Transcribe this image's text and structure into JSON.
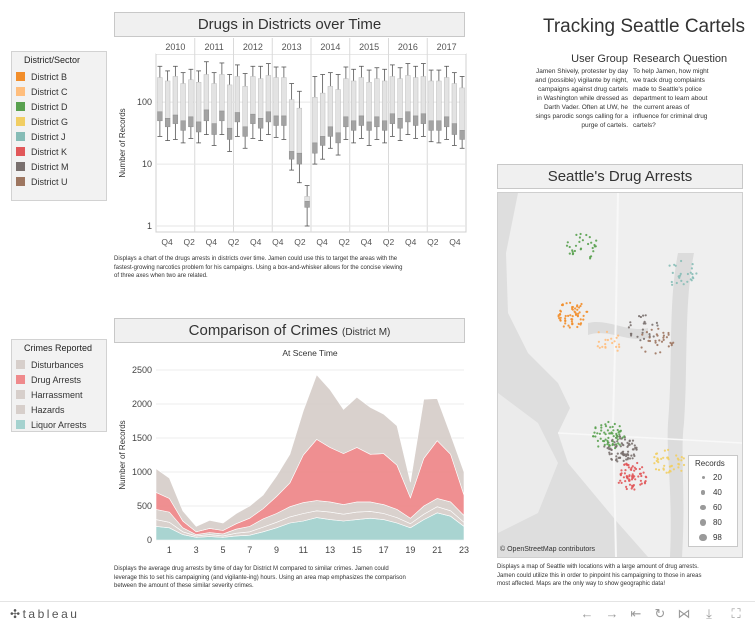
{
  "dashboard": {
    "title": "Tracking Seattle Cartels",
    "user_group": {
      "heading": "User Group",
      "lines": [
        "Jamen Shively, protester by day",
        "and (possible) vigilante by night,",
        "campaigns against drug cartels",
        "in Washington while dressed as",
        "Darth Vader. Often at UW, he",
        "sings parodic songs calling for a",
        "purge of  cartels."
      ]
    },
    "research_question": {
      "heading": "Research Question",
      "lines": [
        "To help Jamen, how might",
        "we track drug complaints",
        "made to Seattle's police",
        "department to learn about",
        "the current areas of",
        "influence for criminal drug",
        "cartels?"
      ]
    }
  },
  "legend_district": {
    "title": "District/Sector",
    "items": [
      {
        "label": "District B",
        "color": "#f28e2b"
      },
      {
        "label": "District C",
        "color": "#ffbe7d"
      },
      {
        "label": "District D",
        "color": "#59a14f"
      },
      {
        "label": "District G",
        "color": "#f1ce63"
      },
      {
        "label": "District J",
        "color": "#86bcb6"
      },
      {
        "label": "District K",
        "color": "#e15759"
      },
      {
        "label": "District M",
        "color": "#79706e"
      },
      {
        "label": "District U",
        "color": "#9d7660"
      }
    ]
  },
  "legend_crimes": {
    "title": "Crimes Reported",
    "items": [
      {
        "label": "Disturbances",
        "color": "#d7cfcb"
      },
      {
        "label": "Drug Arrests",
        "color": "#ef8a8c"
      },
      {
        "label": "Harrassment",
        "color": "#d7cfcb"
      },
      {
        "label": "Hazards",
        "color": "#d7cfcb"
      },
      {
        "label": "Liquor Arrests",
        "color": "#a5d2cf"
      }
    ]
  },
  "drugs_chart": {
    "panel_title": "Drugs in Districts over Time",
    "description": [
      "Displays a chart of the drugs arrests in districts over time. Jamen could use this to target the areas with the",
      "fastest-growing narcotics problem for his campaigns. Using a box-and-whisker allows for the concise viewing",
      "of three axes when two are related."
    ]
  },
  "crimes_chart": {
    "panel_title": "Comparison of Crimes",
    "panel_subtitle": "(District M)",
    "description": [
      "Displays the average drug arrests by time of day for District M compared to similar crimes. Jamen could",
      "leverage this to set  his campaigning (and vigilante-ing) hours. Using an area map emphasizes the comparison",
      "between the amount of these similar severity crimes."
    ]
  },
  "map": {
    "panel_title": "Seattle's Drug Arrests",
    "attribution": "© OpenStreetMap contributors",
    "size_legend": {
      "title": "Records",
      "values": [
        "20",
        "40",
        "60",
        "80",
        "98"
      ]
    },
    "description": [
      "Displays a map of  Seattle  with locations with a large amount of drug arrests.",
      "Jamen could utilize this in order to pinpoint his campaigning to those in areas",
      "most affected. Maps are the only way to show geographic data!"
    ],
    "clusters": [
      {
        "district": "District B",
        "color": "#f28e2b",
        "lon": -122.38,
        "lat": 47.68,
        "count": 60
      },
      {
        "district": "District C",
        "color": "#ffbe7d",
        "lon": -122.35,
        "lat": 47.66,
        "count": 20
      },
      {
        "district": "District D",
        "color": "#59a14f",
        "lon": -122.37,
        "lat": 47.73,
        "count": 30
      },
      {
        "district": "District G",
        "color": "#f1ce63",
        "lon": -122.3,
        "lat": 47.57,
        "count": 40
      },
      {
        "district": "District J",
        "color": "#86bcb6",
        "lon": -122.29,
        "lat": 47.71,
        "count": 25
      },
      {
        "district": "District K",
        "color": "#e15759",
        "lon": -122.33,
        "lat": 47.56,
        "count": 70
      },
      {
        "district": "District M",
        "color": "#79706e",
        "lon": -122.34,
        "lat": 47.58,
        "count": 80
      },
      {
        "district": "District M",
        "color": "#79706e",
        "lon": -122.32,
        "lat": 47.67,
        "count": 25
      },
      {
        "district": "District D",
        "color": "#59a14f",
        "lon": -122.35,
        "lat": 47.59,
        "count": 60
      },
      {
        "district": "District U",
        "color": "#9d7660",
        "lon": -122.31,
        "lat": 47.66,
        "count": 30
      }
    ]
  },
  "chart_data": [
    {
      "type": "boxplot",
      "title": "Drugs in Districts over Time",
      "ylabel": "Number of Records",
      "yscale": "log",
      "ylim": [
        0.8,
        600
      ],
      "yticks": [
        "100",
        "10",
        "1"
      ],
      "years": [
        "2010",
        "2011",
        "2012",
        "2013",
        "2014",
        "2015",
        "2016",
        "2017"
      ],
      "quarter_labels": [
        "Q4",
        "Q2",
        "Q4",
        "Q2",
        "Q4",
        "Q4",
        "Q2",
        "Q4",
        "Q2",
        "Q4",
        "Q2",
        "Q4",
        "Q2",
        "Q4"
      ],
      "boxes": [
        {
          "min": 28,
          "q1": 50,
          "median": 70,
          "q3": 250,
          "max": 380
        },
        {
          "min": 24,
          "q1": 40,
          "median": 55,
          "q3": 220,
          "max": 320
        },
        {
          "min": 25,
          "q1": 45,
          "median": 62,
          "q3": 260,
          "max": 380
        },
        {
          "min": 22,
          "q1": 35,
          "median": 50,
          "q3": 200,
          "max": 300
        },
        {
          "min": 26,
          "q1": 40,
          "median": 58,
          "q3": 230,
          "max": 340
        },
        {
          "min": 22,
          "q1": 33,
          "median": 48,
          "q3": 210,
          "max": 320
        },
        {
          "min": 30,
          "q1": 50,
          "median": 75,
          "q3": 280,
          "max": 450
        },
        {
          "min": 20,
          "q1": 30,
          "median": 45,
          "q3": 200,
          "max": 300
        },
        {
          "min": 30,
          "q1": 50,
          "median": 72,
          "q3": 280,
          "max": 430
        },
        {
          "min": 16,
          "q1": 25,
          "median": 38,
          "q3": 190,
          "max": 280
        },
        {
          "min": 28,
          "q1": 48,
          "median": 68,
          "q3": 260,
          "max": 400
        },
        {
          "min": 18,
          "q1": 28,
          "median": 40,
          "q3": 180,
          "max": 290
        },
        {
          "min": 26,
          "q1": 45,
          "median": 64,
          "q3": 260,
          "max": 380
        },
        {
          "min": 24,
          "q1": 38,
          "median": 55,
          "q3": 240,
          "max": 380
        },
        {
          "min": 30,
          "q1": 48,
          "median": 70,
          "q3": 270,
          "max": 420
        },
        {
          "min": 27,
          "q1": 42,
          "median": 60,
          "q3": 250,
          "max": 370
        },
        {
          "min": 25,
          "q1": 42,
          "median": 60,
          "q3": 250,
          "max": 370
        },
        {
          "min": 8,
          "q1": 12,
          "median": 16,
          "q3": 110,
          "max": 200
        },
        {
          "min": 5,
          "q1": 10,
          "median": 15,
          "q3": 80,
          "max": 150
        },
        {
          "min": 1,
          "q1": 2,
          "median": 2.5,
          "q3": 3,
          "max": 4.5
        },
        {
          "min": 10,
          "q1": 15,
          "median": 22,
          "q3": 120,
          "max": 260
        },
        {
          "min": 12,
          "q1": 20,
          "median": 28,
          "q3": 140,
          "max": 280
        },
        {
          "min": 18,
          "q1": 28,
          "median": 40,
          "q3": 180,
          "max": 300
        },
        {
          "min": 14,
          "q1": 22,
          "median": 32,
          "q3": 160,
          "max": 280
        },
        {
          "min": 25,
          "q1": 40,
          "median": 58,
          "q3": 240,
          "max": 370
        },
        {
          "min": 22,
          "q1": 35,
          "median": 50,
          "q3": 220,
          "max": 340
        },
        {
          "min": 26,
          "q1": 42,
          "median": 60,
          "q3": 250,
          "max": 380
        },
        {
          "min": 20,
          "q1": 35,
          "median": 48,
          "q3": 210,
          "max": 330
        },
        {
          "min": 25,
          "q1": 40,
          "median": 58,
          "q3": 240,
          "max": 360
        },
        {
          "min": 22,
          "q1": 35,
          "median": 50,
          "q3": 220,
          "max": 340
        },
        {
          "min": 28,
          "q1": 45,
          "median": 65,
          "q3": 260,
          "max": 400
        },
        {
          "min": 24,
          "q1": 38,
          "median": 55,
          "q3": 240,
          "max": 360
        },
        {
          "min": 30,
          "q1": 48,
          "median": 70,
          "q3": 270,
          "max": 420
        },
        {
          "min": 26,
          "q1": 42,
          "median": 60,
          "q3": 250,
          "max": 380
        },
        {
          "min": 28,
          "q1": 45,
          "median": 65,
          "q3": 260,
          "max": 420
        },
        {
          "min": 23,
          "q1": 35,
          "median": 50,
          "q3": 220,
          "max": 330
        },
        {
          "min": 22,
          "q1": 35,
          "median": 50,
          "q3": 220,
          "max": 330
        },
        {
          "min": 25,
          "q1": 40,
          "median": 58,
          "q3": 250,
          "max": 380
        },
        {
          "min": 20,
          "q1": 30,
          "median": 45,
          "q3": 200,
          "max": 300
        },
        {
          "min": 18,
          "q1": 25,
          "median": 35,
          "q3": 170,
          "max": 260
        }
      ]
    },
    {
      "type": "area",
      "title": "Comparison of Crimes",
      "subtitle": "At Scene Time",
      "ylabel": "Number of Records",
      "ylim": [
        0,
        2500
      ],
      "yticks": [
        0,
        500,
        1000,
        1500,
        2000,
        2500
      ],
      "x": [
        0,
        1,
        2,
        3,
        4,
        5,
        6,
        7,
        8,
        9,
        10,
        11,
        12,
        13,
        14,
        15,
        16,
        17,
        18,
        19,
        20,
        21,
        22,
        23
      ],
      "xticks": [
        1,
        3,
        5,
        7,
        9,
        11,
        13,
        15,
        17,
        19,
        21,
        23
      ],
      "series": [
        {
          "name": "Liquor Arrests",
          "color": "#a5d2cf",
          "values": [
            200,
            180,
            80,
            40,
            50,
            40,
            60,
            70,
            120,
            180,
            250,
            280,
            330,
            300,
            280,
            300,
            320,
            300,
            250,
            180,
            300,
            400,
            350,
            200
          ]
        },
        {
          "name": "Hazards",
          "color": "#d7cfcb",
          "values": [
            100,
            80,
            40,
            20,
            30,
            20,
            40,
            50,
            70,
            80,
            90,
            110,
            100,
            110,
            100,
            110,
            100,
            90,
            80,
            60,
            80,
            90,
            80,
            60
          ]
        },
        {
          "name": "Harrassment",
          "color": "#d7cfcb",
          "values": [
            150,
            150,
            60,
            20,
            30,
            30,
            60,
            80,
            120,
            130,
            150,
            160,
            150,
            150,
            140,
            150,
            140,
            130,
            120,
            80,
            120,
            120,
            130,
            100
          ]
        },
        {
          "name": "Drug Arrests",
          "color": "#ef8a8c",
          "values": [
            250,
            200,
            100,
            40,
            60,
            50,
            80,
            120,
            150,
            250,
            350,
            700,
            900,
            800,
            750,
            800,
            700,
            750,
            650,
            300,
            700,
            850,
            700,
            300
          ]
        },
        {
          "name": "Disturbances",
          "color": "#d7cfcb",
          "values": [
            350,
            300,
            150,
            80,
            120,
            110,
            150,
            180,
            200,
            300,
            420,
            650,
            950,
            850,
            650,
            740,
            690,
            580,
            580,
            230,
            870,
            620,
            290,
            340
          ]
        }
      ]
    }
  ]
}
